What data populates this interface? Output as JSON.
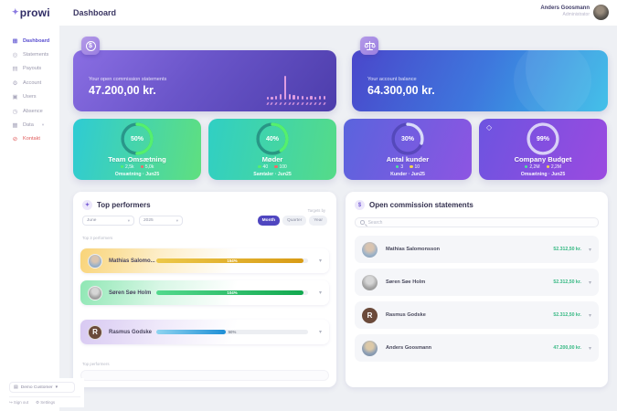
{
  "topbar": {
    "logo": "prowi",
    "page_title": "Dashboard",
    "user": {
      "name": "Anders Goosmann",
      "role": "Administrator"
    }
  },
  "sidebar": {
    "items": [
      {
        "label": "Dashboard"
      },
      {
        "label": "Statements"
      },
      {
        "label": "Payouts"
      },
      {
        "label": "Account"
      },
      {
        "label": "Users"
      },
      {
        "label": "Absence"
      },
      {
        "label": "Data"
      },
      {
        "label": "Kontakt"
      }
    ],
    "company": "Demo Customer",
    "signout": "Sign out",
    "settings": "Settings"
  },
  "stat_cards": [
    {
      "label": "Your open commission statements",
      "value": "47.200,00 kr.",
      "spark": [
        3,
        3,
        4,
        6,
        26,
        6,
        5,
        4,
        4,
        3,
        4,
        3,
        4,
        4
      ]
    },
    {
      "label": "Your account balance",
      "value": "64.300,00 kr."
    }
  ],
  "kpis": [
    {
      "percent": "50%",
      "value": 50,
      "title": "Team Omsætning",
      "ring": "#55f06e",
      "track": "rgba(13,76,88,0.45)",
      "legend": [
        {
          "color": "#55f06e",
          "label": "2,5k"
        },
        {
          "color": "#ef6a6a",
          "label": "5,0k"
        }
      ],
      "footer": "Omsætning · Jun25"
    },
    {
      "percent": "40%",
      "value": 40,
      "title": "Møder",
      "ring": "#55f06e",
      "track": "rgba(13,76,88,0.45)",
      "legend": [
        {
          "color": "#55f06e",
          "label": "40"
        },
        {
          "color": "#ef6a6a",
          "label": "100"
        }
      ],
      "footer": "Samtaler · Jun25"
    },
    {
      "percent": "30%",
      "value": 30,
      "title": "Antal kunder",
      "ring": "#d9dcfa",
      "track": "rgba(38,34,120,0.35)",
      "legend": [
        {
          "color": "#4fe3a0",
          "label": "3"
        },
        {
          "color": "#f3d74e",
          "label": "10"
        }
      ],
      "footer": "Kunder · Jun25"
    },
    {
      "percent": "99%",
      "value": 99,
      "title": "Company Budget",
      "ring": "#d9d0f8",
      "track": "rgba(44,30,110,0.35)",
      "legend": [
        {
          "color": "#4fe3a0",
          "label": "2,2M"
        },
        {
          "color": "#f3d74e",
          "label": "2,2M"
        }
      ],
      "footer": "Omsætning · Jun25"
    }
  ],
  "top_performers": {
    "title": "Top performers",
    "month": "June",
    "year": "2025",
    "targets_by": "Targets by",
    "segments": [
      "Month",
      "Quarter",
      "Year"
    ],
    "active_segment": "Month",
    "subtitle": "Top 3 performers",
    "rows": [
      {
        "name": "Mathias Salomo...",
        "percent": "154%",
        "fill": 97
      },
      {
        "name": "Søren Søe Holm",
        "percent": "104%",
        "fill": 97
      },
      {
        "name": "Rasmus Godske",
        "percent": "50%",
        "fill": 46
      }
    ],
    "footer_label": "Top performers"
  },
  "open_statements": {
    "title": "Open commission statements",
    "search_placeholder": "Search",
    "rows": [
      {
        "name": "Mathias Salomonsson",
        "amount": "52.312,50 kr."
      },
      {
        "name": "Søren Søe Holm",
        "amount": "52.312,50 kr."
      },
      {
        "name": "Rasmus Godske",
        "amount": "52.312,50 kr."
      },
      {
        "name": "Anders Goosmann",
        "amount": "47.200,00 kr."
      }
    ]
  },
  "icons": {
    "logo_sparkle": "✦",
    "dashboard": "⊞",
    "statements": "◎",
    "payouts": "▤",
    "account": "⚙",
    "users": "▣",
    "absence": "◷",
    "data": "▦",
    "kontakt": "⊘",
    "chevron_down": "▾",
    "company": "▤",
    "signout": "↪",
    "settings": "⚙",
    "coin": "$",
    "diamond": "◇",
    "sparkle": "✦",
    "statement": "$"
  },
  "colors": {
    "accent": "#5348c8",
    "danger": "#e05b5b",
    "amount_green": "#35b883",
    "card_purple_from": "#8a6ee3",
    "card_purple_to": "#4c3dab",
    "card_blue_from": "#4a47cb",
    "card_blue_to": "#35bce8"
  }
}
